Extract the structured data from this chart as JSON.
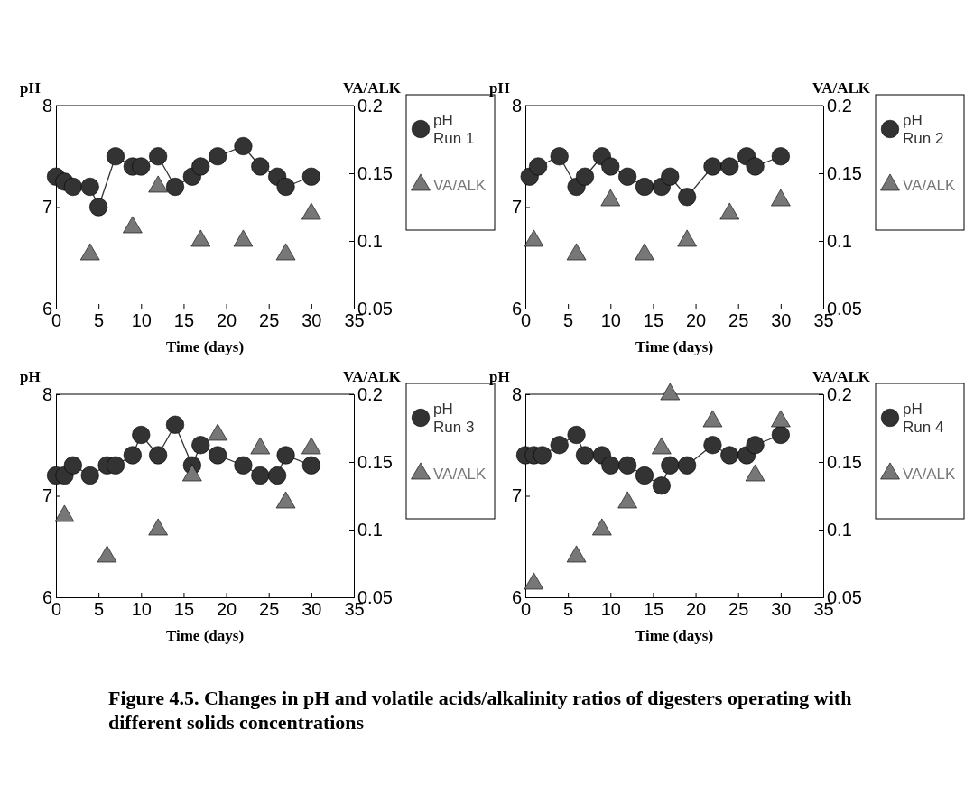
{
  "chart_data": [
    {
      "type": "line",
      "xlabel": "Time (days)",
      "ylabel": "pH",
      "y2label": "VA/ALK",
      "xlim": [
        0,
        35
      ],
      "xticks": [
        0,
        5,
        10,
        15,
        20,
        25,
        30,
        35
      ],
      "ylim": [
        6,
        8
      ],
      "yticks": [
        6,
        7,
        8
      ],
      "y2lim": [
        0.05,
        0.2
      ],
      "y2ticks": [
        0.05,
        0.1,
        0.15,
        0.2
      ],
      "legend": "right",
      "series": [
        {
          "name": "pH Run 1",
          "type": "line",
          "marker": "circle",
          "line_style": "solid",
          "color": "#333333",
          "x": [
            0,
            1,
            2,
            4,
            5,
            7,
            9,
            10,
            12,
            14,
            16,
            17,
            19,
            22,
            24,
            26,
            27,
            30
          ],
          "values": [
            7.3,
            7.25,
            7.2,
            7.2,
            7.0,
            7.5,
            7.4,
            7.4,
            7.5,
            7.2,
            7.3,
            7.4,
            7.5,
            7.6,
            7.4,
            7.3,
            7.2,
            7.3
          ]
        },
        {
          "name": "VA/ALK",
          "type": "scatter",
          "marker": "triangle",
          "axis": "y2",
          "color": "#777777",
          "x": [
            4,
            9,
            12,
            17,
            22,
            27,
            30
          ],
          "values": [
            0.09,
            0.11,
            0.14,
            0.1,
            0.1,
            0.09,
            0.12
          ]
        }
      ]
    },
    {
      "type": "line",
      "xlabel": "Time (days)",
      "ylabel": "pH",
      "y2label": "VA/ALK",
      "xlim": [
        0,
        35
      ],
      "xticks": [
        0,
        5,
        10,
        15,
        20,
        25,
        30,
        35
      ],
      "ylim": [
        6,
        8
      ],
      "yticks": [
        6,
        7,
        8
      ],
      "y2lim": [
        0.05,
        0.2
      ],
      "y2ticks": [
        0.05,
        0.1,
        0.15,
        0.2
      ],
      "legend": "right",
      "series": [
        {
          "name": "pH Run 2",
          "type": "line",
          "marker": "circle",
          "line_style": "solid",
          "color": "#333333",
          "x": [
            0.5,
            1.5,
            4,
            6,
            7,
            9,
            10,
            12,
            14,
            16,
            17,
            19,
            22,
            24,
            26,
            27,
            30
          ],
          "values": [
            7.3,
            7.4,
            7.5,
            7.2,
            7.3,
            7.5,
            7.4,
            7.3,
            7.2,
            7.2,
            7.3,
            7.1,
            7.4,
            7.4,
            7.5,
            7.4,
            7.5
          ]
        },
        {
          "name": "VA/ALK",
          "type": "scatter",
          "marker": "triangle",
          "axis": "y2",
          "color": "#777777",
          "x": [
            1,
            6,
            10,
            14,
            19,
            24,
            30
          ],
          "values": [
            0.1,
            0.09,
            0.13,
            0.09,
            0.1,
            0.12,
            0.13
          ]
        }
      ]
    },
    {
      "type": "line",
      "xlabel": "Time (days)",
      "ylabel": "pH",
      "y2label": "VA/ALK",
      "xlim": [
        0,
        35
      ],
      "xticks": [
        0,
        5,
        10,
        15,
        20,
        25,
        30,
        35
      ],
      "ylim": [
        6,
        8
      ],
      "yticks": [
        6,
        7,
        8
      ],
      "y2lim": [
        0.05,
        0.2
      ],
      "y2ticks": [
        0.05,
        0.1,
        0.15,
        0.2
      ],
      "legend": "right",
      "series": [
        {
          "name": "pH Run 3",
          "type": "line",
          "marker": "circle",
          "line_style": "solid",
          "color": "#333333",
          "x": [
            0,
            1,
            2,
            4,
            6,
            7,
            9,
            10,
            12,
            14,
            16,
            17,
            19,
            22,
            24,
            26,
            27,
            30
          ],
          "values": [
            7.2,
            7.2,
            7.3,
            7.2,
            7.3,
            7.3,
            7.4,
            7.6,
            7.4,
            7.7,
            7.3,
            7.5,
            7.4,
            7.3,
            7.2,
            7.2,
            7.4,
            7.3
          ]
        },
        {
          "name": "VA/ALK",
          "type": "scatter",
          "marker": "triangle",
          "axis": "y2",
          "color": "#777777",
          "x": [
            1,
            6,
            12,
            16,
            19,
            24,
            27,
            30
          ],
          "values": [
            0.11,
            0.08,
            0.1,
            0.14,
            0.17,
            0.16,
            0.12,
            0.16
          ]
        }
      ]
    },
    {
      "type": "line",
      "xlabel": "Time (days)",
      "ylabel": "pH",
      "y2label": "VA/ALK",
      "xlim": [
        0,
        35
      ],
      "xticks": [
        0,
        5,
        10,
        15,
        20,
        25,
        30,
        35
      ],
      "ylim": [
        6,
        8
      ],
      "yticks": [
        6,
        7,
        8
      ],
      "y2lim": [
        0.05,
        0.2
      ],
      "y2ticks": [
        0.05,
        0.1,
        0.15,
        0.2
      ],
      "legend": "right",
      "annotations": [
        "Figure 4.5. Changes in pH and volatile acids/alkalinity ratios of digesters operating with different solids concentrations"
      ],
      "series": [
        {
          "name": "pH Run 4",
          "type": "line",
          "marker": "circle",
          "line_style": "solid",
          "color": "#333333",
          "x": [
            0,
            1,
            2,
            4,
            6,
            7,
            9,
            10,
            12,
            14,
            16,
            17,
            19,
            22,
            24,
            26,
            27,
            30
          ],
          "values": [
            7.4,
            7.4,
            7.4,
            7.5,
            7.6,
            7.4,
            7.4,
            7.3,
            7.3,
            7.2,
            7.1,
            7.3,
            7.3,
            7.5,
            7.4,
            7.4,
            7.5,
            7.6
          ]
        },
        {
          "name": "VA/ALK",
          "type": "scatter",
          "marker": "triangle",
          "axis": "y2",
          "color": "#777777",
          "x": [
            1,
            6,
            9,
            12,
            16,
            17,
            22,
            27,
            30
          ],
          "values": [
            0.06,
            0.08,
            0.1,
            0.12,
            0.16,
            0.2,
            0.18,
            0.14,
            0.18
          ]
        }
      ]
    }
  ]
}
